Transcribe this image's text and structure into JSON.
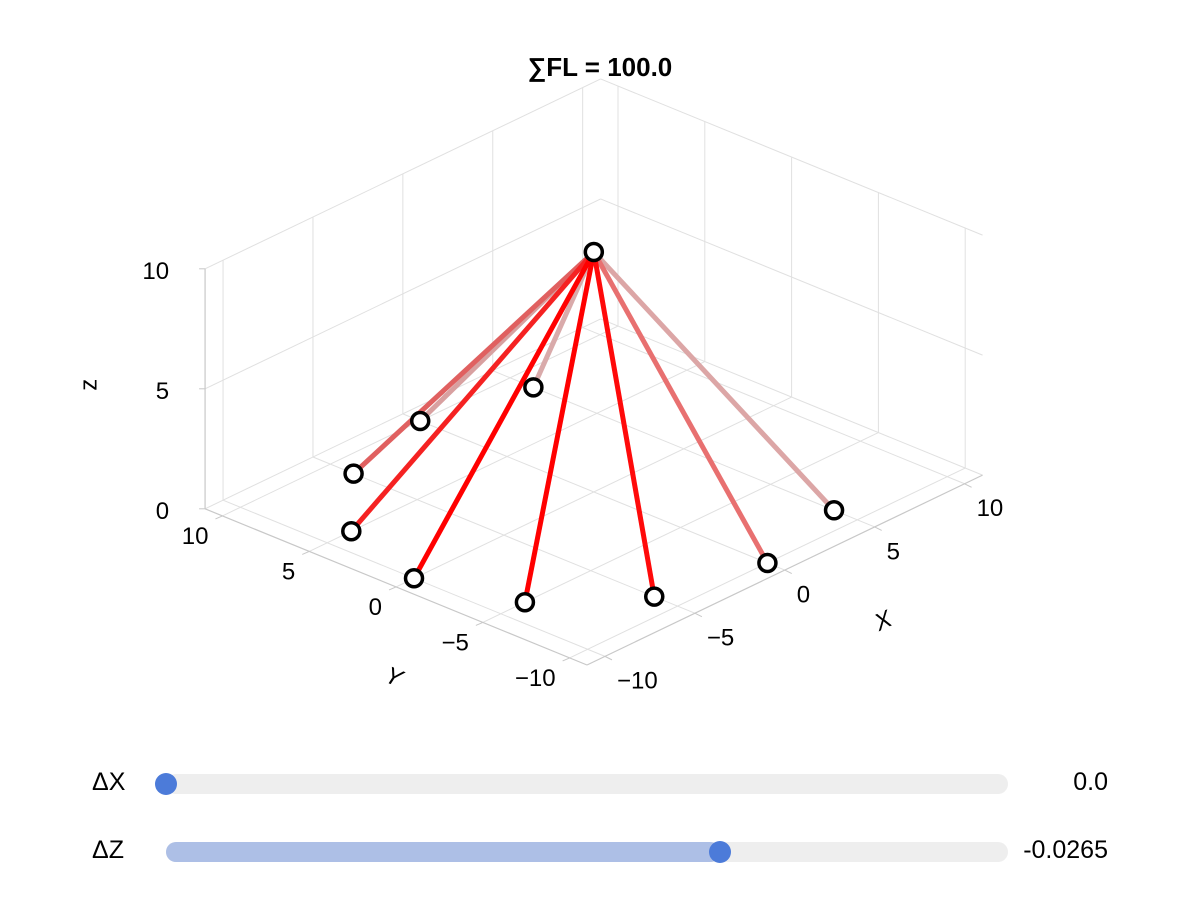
{
  "chart_data": {
    "type": "line3d",
    "title": "∑FL = 100.0",
    "xlabel": "X",
    "ylabel": "Y",
    "zlabel": "z",
    "xlim": [
      -11,
      11
    ],
    "ylim": [
      -11,
      11
    ],
    "zlim": [
      0,
      10
    ],
    "x_ticks": [
      -10,
      -5,
      0,
      5,
      10
    ],
    "y_ticks": [
      -10,
      -5,
      0,
      5,
      10
    ],
    "z_ticks": [
      0,
      5,
      10
    ],
    "x_tick_labels": [
      "−10",
      "−5",
      "0",
      "5",
      "10"
    ],
    "y_tick_labels": [
      "−10",
      "−5",
      "0",
      "5",
      "10"
    ],
    "z_tick_labels": [
      "0",
      "5",
      "10"
    ],
    "grid": true,
    "apex": {
      "x": 0,
      "y": 0,
      "z": 10
    },
    "anchors": [
      {
        "x": -10,
        "y": 0,
        "z": 0,
        "color": "#ff0000"
      },
      {
        "x": -8.66,
        "y": 5,
        "z": 0,
        "color": "#f52222"
      },
      {
        "x": -8.66,
        "y": -5,
        "z": 0,
        "color": "#ff0000"
      },
      {
        "x": -5,
        "y": 8.66,
        "z": 0,
        "color": "#e06060"
      },
      {
        "x": -5,
        "y": -8.66,
        "z": 0,
        "color": "#ff0a0a"
      },
      {
        "x": 0,
        "y": 10,
        "z": 0,
        "color": "#d8a0a0"
      },
      {
        "x": 0,
        "y": -10,
        "z": 0,
        "color": "#e87070"
      },
      {
        "x": 5,
        "y": 8.66,
        "z": 0,
        "color": "#d9aaaa"
      },
      {
        "x": 5,
        "y": -8.66,
        "z": 0,
        "color": "#dca6a6"
      }
    ]
  },
  "sliders": [
    {
      "label": "ΔX",
      "value_text": "0.0",
      "fraction": 0.0
    },
    {
      "label": "ΔZ",
      "value_text": "-0.0265",
      "fraction": 0.658
    }
  ],
  "colors": {
    "grid": "#e0e0e0",
    "axis": "#c8c8c8",
    "slider_track": "#eeeeee",
    "slider_fill": "#adbfe6",
    "slider_handle": "#4c7bd9"
  }
}
